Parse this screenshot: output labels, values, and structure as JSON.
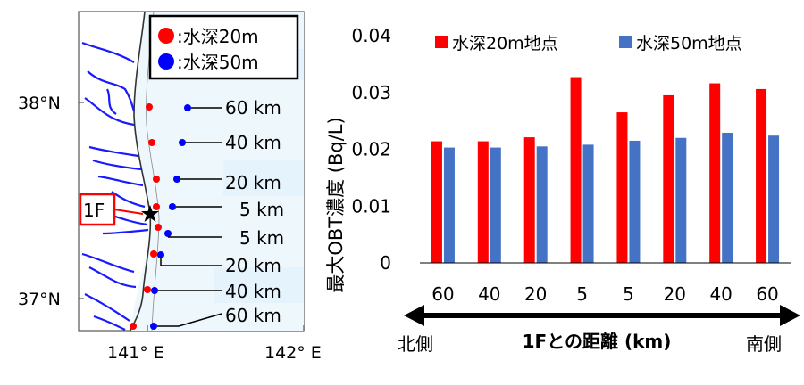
{
  "map": {
    "lat_labels": [
      "38°N",
      "37°N"
    ],
    "lon_labels": [
      "141° E",
      "142° E"
    ],
    "legend": [
      {
        "label": ":水深20m",
        "color": "#ff0000"
      },
      {
        "label": ":水深50m",
        "color": "#0000ff"
      }
    ],
    "site_label": "1F",
    "distance_labels": [
      "60 km",
      "40 km",
      "20 km",
      "5 km",
      "5 km",
      "20 km",
      "40 km",
      "60 km"
    ]
  },
  "chart_data": {
    "type": "bar",
    "categories": [
      "60",
      "40",
      "20",
      "5",
      "5",
      "20",
      "40",
      "60"
    ],
    "series": [
      {
        "name": "水深20m地点",
        "color": "#ff0000",
        "values": [
          0.0214,
          0.0214,
          0.0221,
          0.0327,
          0.0265,
          0.0295,
          0.0316,
          0.0306
        ]
      },
      {
        "name": "水深50m地点",
        "color": "#4472c4",
        "values": [
          0.0203,
          0.0203,
          0.0205,
          0.0208,
          0.0215,
          0.022,
          0.0229,
          0.0224
        ]
      }
    ],
    "ylabel": "最大OBT濃度 (Bq/L)",
    "xlabel": "1Fとの距離 (km)",
    "ylim": [
      0,
      0.04
    ],
    "yticks": [
      "0",
      "0.01",
      "0.02",
      "0.03",
      "0.04"
    ],
    "left_label": "北側",
    "right_label": "南側",
    "legend_position": "top",
    "grid": false
  }
}
